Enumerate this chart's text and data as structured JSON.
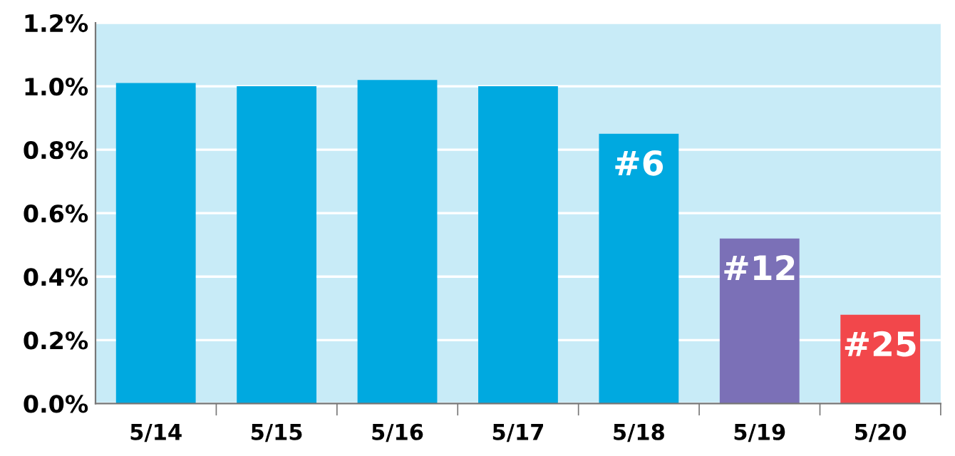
{
  "chart_data": {
    "type": "bar",
    "categories": [
      "5/14",
      "5/15",
      "5/16",
      "5/17",
      "5/18",
      "5/19",
      "5/20"
    ],
    "values": [
      1.01,
      1.0,
      1.02,
      1.0,
      0.85,
      0.52,
      0.28
    ],
    "colors": [
      "#00a9e0",
      "#00a9e0",
      "#00a9e0",
      "#00a9e0",
      "#00a9e0",
      "#7b70b7",
      "#f2474b"
    ],
    "ylim": [
      0,
      1.2
    ],
    "yticks": [
      {
        "value": 0,
        "label": "0.0%"
      },
      {
        "value": 0.2,
        "label": "0.2%"
      },
      {
        "value": 0.4,
        "label": "0.4%"
      },
      {
        "value": 0.6,
        "label": "0.6%"
      },
      {
        "value": 0.8,
        "label": "0.8%"
      },
      {
        "value": 1.0,
        "label": "1.0%"
      },
      {
        "value": 1.2,
        "label": "1.2%"
      }
    ],
    "grid": "y",
    "annotations": [
      {
        "text": "#6",
        "x": "5/18",
        "y": 0.85
      },
      {
        "text": "#12",
        "x": "5/19",
        "y": 0.52
      },
      {
        "text": "#25",
        "x": "5/20",
        "y": 0.28
      }
    ]
  }
}
